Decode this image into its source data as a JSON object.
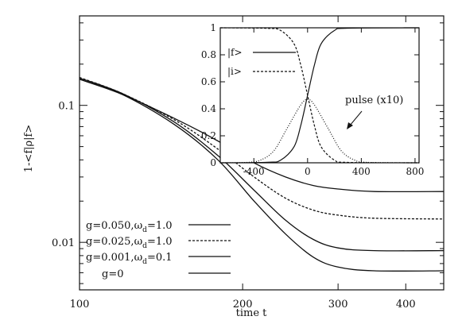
{
  "chart_data": [
    {
      "type": "line",
      "xlabel": "time t",
      "ylabel": "1-<f|ρ|f>",
      "xscale": "log",
      "yscale": "log",
      "xlim": [
        100,
        470
      ],
      "ylim": [
        0.0045,
        0.45
      ],
      "xticks": [
        100,
        200,
        300,
        400
      ],
      "yticks": [
        0.01,
        0.1
      ],
      "ytick_labels": [
        "0.01",
        "0.1"
      ],
      "legend_placement": "bottom-left",
      "series": [
        {
          "label_main": "g=0.050,ω",
          "label_sub": "d",
          "label_tail": "=1.0",
          "dash": "",
          "points": [
            [
              100,
              0.155
            ],
            [
              120,
              0.12
            ],
            [
              150,
              0.08
            ],
            [
              180,
              0.055
            ],
            [
              210,
              0.038
            ],
            [
              240,
              0.03
            ],
            [
              270,
              0.026
            ],
            [
              300,
              0.0245
            ],
            [
              350,
              0.0235
            ],
            [
              470,
              0.0235
            ]
          ]
        },
        {
          "label_main": "g=0.025,ω",
          "label_sub": "d",
          "label_tail": "=1.0",
          "dash": "3,2",
          "points": [
            [
              100,
              0.16
            ],
            [
              120,
              0.122
            ],
            [
              150,
              0.078
            ],
            [
              180,
              0.048
            ],
            [
              210,
              0.03
            ],
            [
              240,
              0.021
            ],
            [
              270,
              0.0172
            ],
            [
              300,
              0.0158
            ],
            [
              350,
              0.015
            ],
            [
              470,
              0.0148
            ]
          ]
        },
        {
          "label_main": "g=0.001,ω",
          "label_sub": "d",
          "label_tail": "=0.1",
          "dash": "",
          "points": [
            [
              100,
              0.158
            ],
            [
              120,
              0.122
            ],
            [
              150,
              0.075
            ],
            [
              180,
              0.043
            ],
            [
              210,
              0.024
            ],
            [
              240,
              0.0145
            ],
            [
              270,
              0.0105
            ],
            [
              300,
              0.0091
            ],
            [
              350,
              0.0087
            ],
            [
              470,
              0.0087
            ]
          ]
        },
        {
          "label_main": "g=0",
          "label_sub": "",
          "label_tail": "",
          "dash": "",
          "points": [
            [
              100,
              0.155
            ],
            [
              120,
              0.12
            ],
            [
              150,
              0.072
            ],
            [
              180,
              0.04
            ],
            [
              210,
              0.02
            ],
            [
              240,
              0.0115
            ],
            [
              270,
              0.0078
            ],
            [
              300,
              0.0066
            ],
            [
              350,
              0.0062
            ],
            [
              470,
              0.0062
            ]
          ]
        }
      ]
    },
    {
      "type": "line",
      "xlim": [
        -650,
        830
      ],
      "ylim": [
        0,
        1
      ],
      "xticks": [
        -400,
        0,
        400,
        800
      ],
      "xtick_labels": [
        "-400",
        "0",
        "400",
        "800"
      ],
      "yticks": [
        0,
        0.2,
        0.4,
        0.6,
        0.8,
        1
      ],
      "ytick_labels": [
        "0",
        "0.2",
        "0.4",
        "0.6",
        "0.8",
        "1"
      ],
      "annotation": "pulse (x10)",
      "series": [
        {
          "name": "|f>",
          "dash": "",
          "points": [
            [
              -650,
              0
            ],
            [
              -300,
              0.004
            ],
            [
              -200,
              0.02
            ],
            [
              -100,
              0.12
            ],
            [
              -50,
              0.28
            ],
            [
              0,
              0.5
            ],
            [
              50,
              0.72
            ],
            [
              100,
              0.88
            ],
            [
              200,
              0.98
            ],
            [
              300,
              0.997
            ],
            [
              830,
              1
            ]
          ]
        },
        {
          "name": "|i>",
          "dash": "3,2",
          "points": [
            [
              -650,
              1
            ],
            [
              -300,
              0.996
            ],
            [
              -200,
              0.98
            ],
            [
              -100,
              0.88
            ],
            [
              -50,
              0.72
            ],
            [
              0,
              0.5
            ],
            [
              50,
              0.28
            ],
            [
              100,
              0.12
            ],
            [
              200,
              0.02
            ],
            [
              300,
              0.003
            ],
            [
              830,
              0
            ]
          ]
        },
        {
          "name": "",
          "dash": "1,2",
          "points": [
            [
              -650,
              0
            ],
            [
              -450,
              0.003
            ],
            [
              -350,
              0.02
            ],
            [
              -250,
              0.09
            ],
            [
              -150,
              0.26
            ],
            [
              -50,
              0.43
            ],
            [
              0,
              0.47
            ],
            [
              50,
              0.43
            ],
            [
              150,
              0.26
            ],
            [
              250,
              0.09
            ],
            [
              350,
              0.02
            ],
            [
              450,
              0.003
            ],
            [
              830,
              0
            ]
          ]
        }
      ]
    }
  ]
}
